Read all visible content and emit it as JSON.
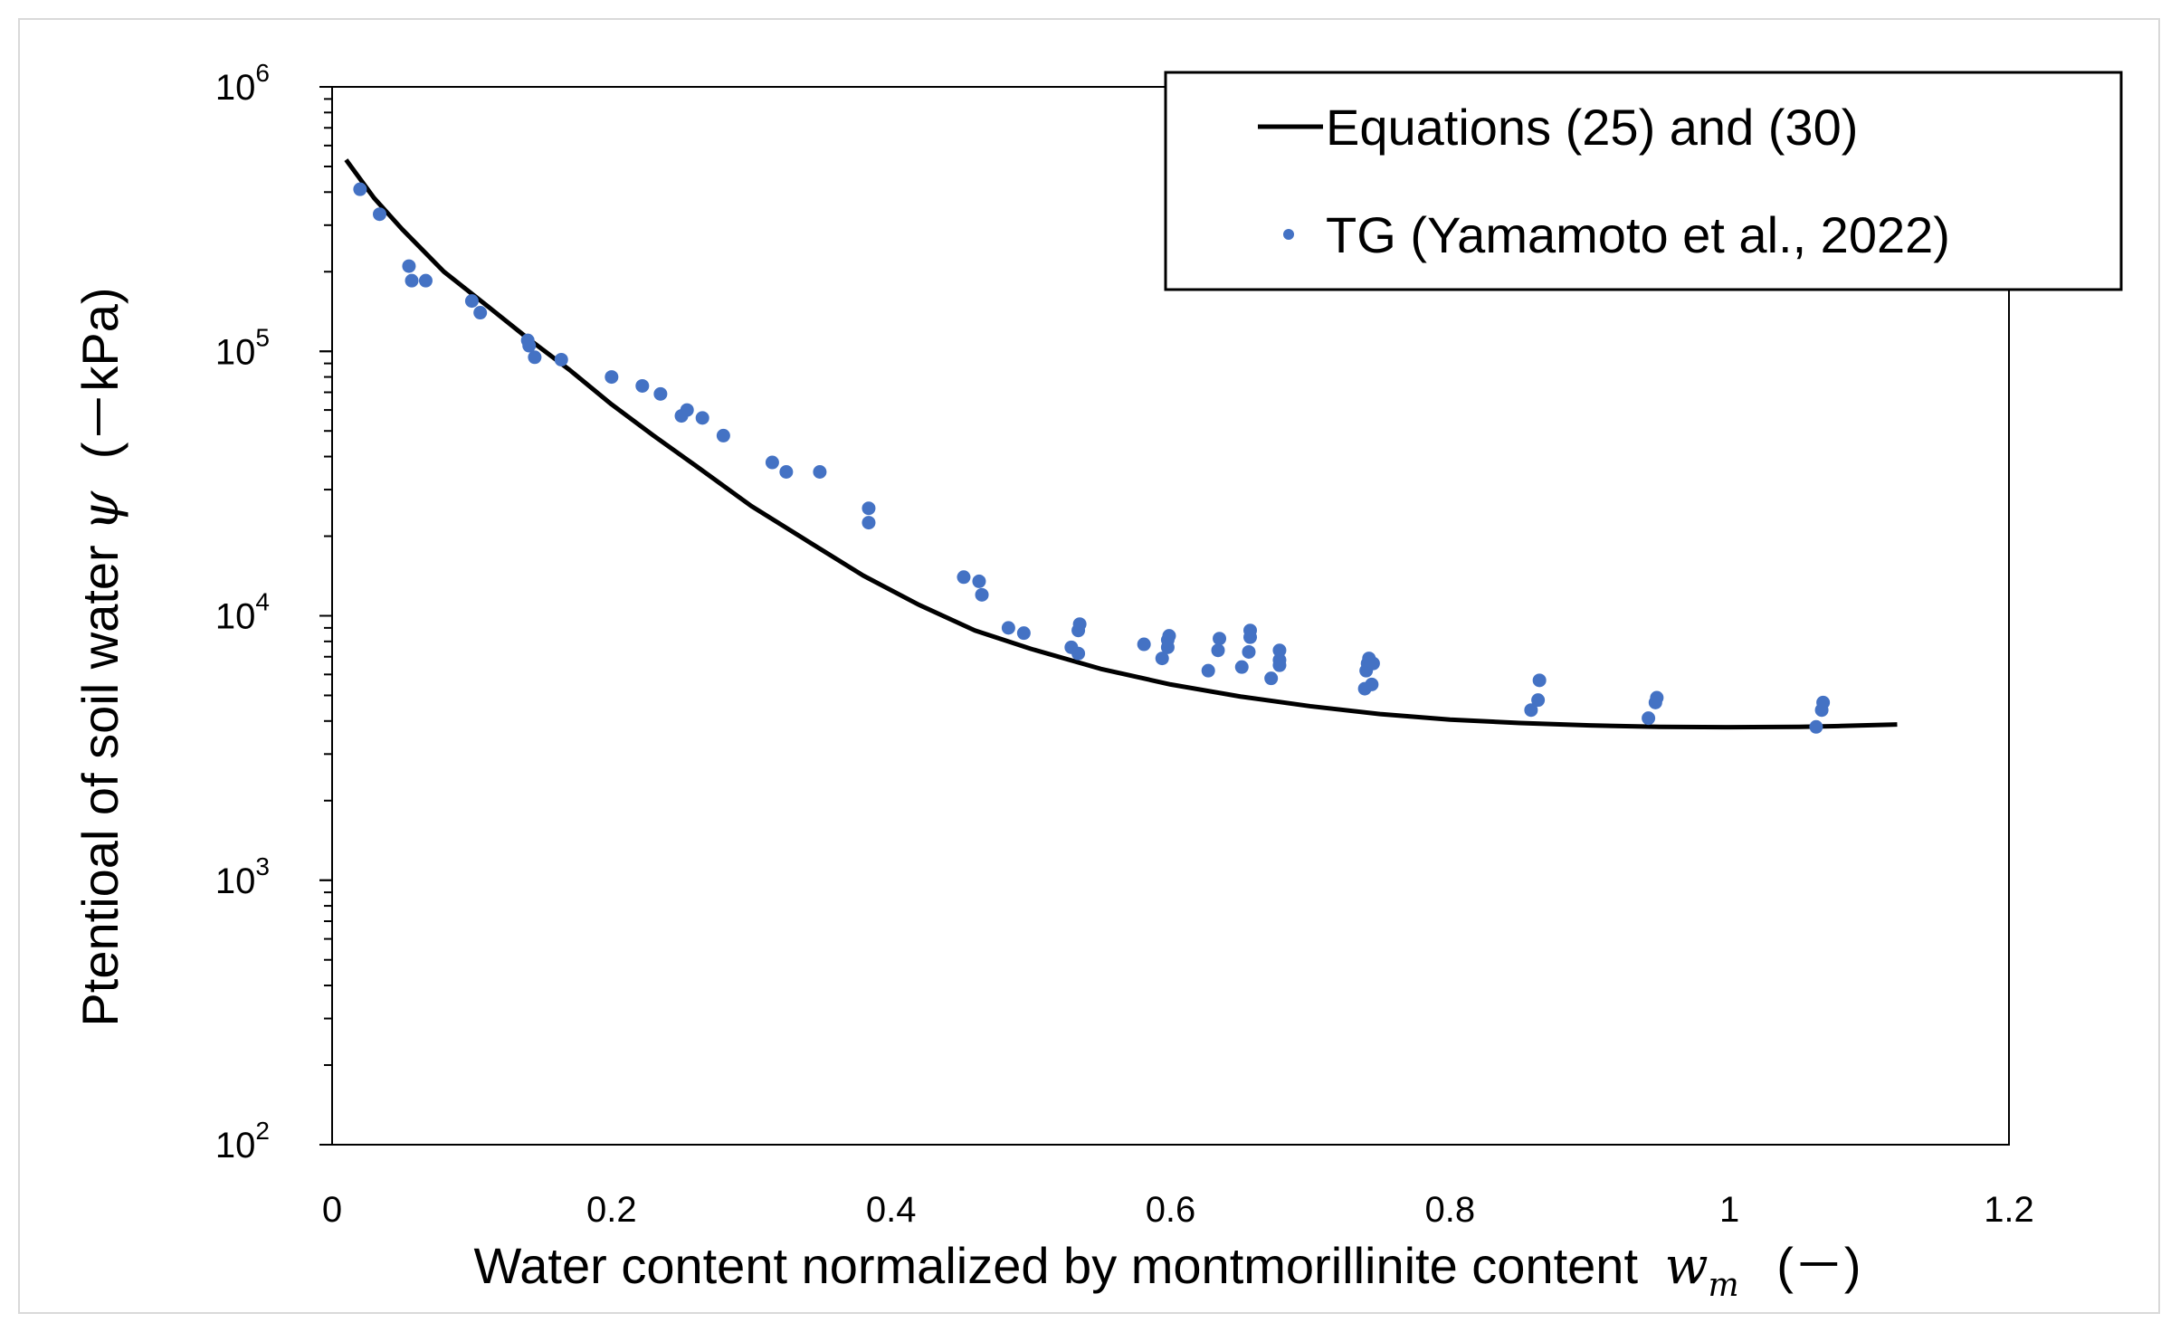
{
  "chart_data": {
    "type": "scatter",
    "title": "",
    "xlabel": "Water content normalized by montmorillinite content",
    "xlabel_symbol": "w",
    "xlabel_subscript": "m",
    "xlabel_unit": "(－)",
    "ylabel": "Ptentioal of soil water",
    "ylabel_symbol": "ψ",
    "ylabel_unit": "(－kPa)",
    "x_ticks": [
      "0",
      "0.2",
      "0.4",
      "0.6",
      "0.8",
      "1",
      "1.2"
    ],
    "xlim": [
      0,
      1.2
    ],
    "y_scale": "log",
    "y_tick_base": "10",
    "y_tick_exponents": [
      "2",
      "3",
      "4",
      "5",
      "6"
    ],
    "ylim": [
      100,
      1000000
    ],
    "legend_position": "top-right",
    "series": [
      {
        "name": "Equations (25) and (30)",
        "kind": "line",
        "color": "#000000",
        "x": [
          0.01,
          0.03,
          0.05,
          0.08,
          0.11,
          0.14,
          0.17,
          0.2,
          0.23,
          0.26,
          0.3,
          0.34,
          0.38,
          0.42,
          0.46,
          0.5,
          0.55,
          0.6,
          0.65,
          0.7,
          0.75,
          0.8,
          0.85,
          0.9,
          0.95,
          1.0,
          1.05,
          1.08,
          1.12
        ],
        "y": [
          530000,
          380000,
          290000,
          200000,
          150000,
          112000,
          85000,
          63000,
          48000,
          37000,
          26000,
          19200,
          14200,
          11000,
          8800,
          7500,
          6300,
          5500,
          4950,
          4550,
          4250,
          4050,
          3930,
          3850,
          3800,
          3790,
          3800,
          3830,
          3880
        ]
      },
      {
        "name": "TG (Yamamoto et al., 2022)",
        "kind": "scatter",
        "color": "#4472c4",
        "x": [
          0.02,
          0.034,
          0.055,
          0.057,
          0.067,
          0.1,
          0.106,
          0.14,
          0.141,
          0.145,
          0.164,
          0.2,
          0.222,
          0.235,
          0.25,
          0.254,
          0.265,
          0.28,
          0.315,
          0.325,
          0.349,
          0.384,
          0.384,
          0.452,
          0.463,
          0.465,
          0.484,
          0.495,
          0.529,
          0.534,
          0.534,
          0.535,
          0.581,
          0.594,
          0.598,
          0.598,
          0.599,
          0.627,
          0.634,
          0.635,
          0.651,
          0.656,
          0.657,
          0.657,
          0.672,
          0.678,
          0.678,
          0.678,
          0.739,
          0.74,
          0.741,
          0.742,
          0.744,
          0.745,
          0.858,
          0.863,
          0.864,
          0.942,
          0.947,
          0.948,
          1.062,
          1.066,
          1.067
        ],
        "y": [
          410000,
          330000,
          210000,
          185000,
          185000,
          155000,
          140000,
          110000,
          105000,
          95000,
          93000,
          80000,
          74000,
          69000,
          57000,
          60000,
          56000,
          48000,
          38000,
          35000,
          35000,
          25500,
          22500,
          14000,
          13500,
          12000,
          9000,
          8600,
          7600,
          7200,
          8800,
          9300,
          7800,
          6900,
          7600,
          8100,
          8400,
          6200,
          7400,
          8200,
          6400,
          7300,
          8300,
          8800,
          5800,
          6500,
          6800,
          7400,
          5300,
          6200,
          6600,
          6900,
          5500,
          6600,
          4400,
          4800,
          5700,
          4100,
          4700,
          4900,
          3800,
          4400,
          4700
        ]
      }
    ]
  }
}
